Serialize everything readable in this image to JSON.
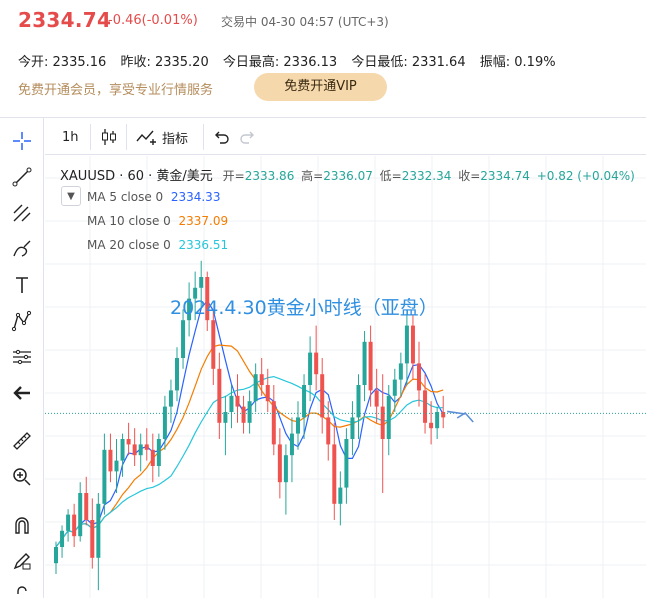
{
  "quote": {
    "price": "2334.74",
    "change": "-0.46(-0.01%)",
    "status": "交易中 04-30 04:57 (UTC+3)"
  },
  "stats": [
    {
      "label": "今开:",
      "value": "2335.16"
    },
    {
      "label": "昨收:",
      "value": "2335.20"
    },
    {
      "label": "今日最高:",
      "value": "2336.13"
    },
    {
      "label": "今日最低:",
      "value": "2331.64"
    },
    {
      "label": "振幅:",
      "value": "0.19%"
    }
  ],
  "promo": {
    "text": "免费开通会员，享受专业行情服务",
    "button": "免费开通VIP"
  },
  "toolbar": {
    "interval": "1h",
    "indicators": "指标"
  },
  "left_tools": [
    "crosshair-icon",
    "trend-line-icon",
    "fib-icon",
    "brush-icon",
    "text-icon",
    "pattern-icon",
    "measure-icon",
    "back-arrow-icon",
    "ruler-icon",
    "zoom-in-icon",
    "magnet-icon",
    "lock-pencil-icon",
    "lock-icon"
  ],
  "legend": {
    "symbol": "XAUUSD · 60 · 黄金/美元",
    "open_label": "开=",
    "open": "2333.86",
    "high_label": "高=",
    "high": "2336.07",
    "low_label": "低=",
    "low": "2332.34",
    "close_label": "收=",
    "close": "2334.74",
    "change": "+0.82 (+0.04%)",
    "ma": [
      {
        "label": "MA 5 close 0",
        "value": "2334.33",
        "color": "#2962ff"
      },
      {
        "label": "MA 10 close 0",
        "value": "2337.09",
        "color": "#f57c00"
      },
      {
        "label": "MA 20 close 0",
        "value": "2336.51",
        "color": "#26c6da"
      }
    ]
  },
  "annotation": "2024.4.30黄金小时线（亚盘）",
  "colors": {
    "up": "#26a69a",
    "down": "#ef5350",
    "price_red": "#e54b4b",
    "annotation_blue": "#2f8fe0"
  },
  "chart_data": {
    "type": "candlestick",
    "ohlc": [
      [
        2307,
        2311,
        2305,
        2310
      ],
      [
        2310,
        2314,
        2308,
        2313
      ],
      [
        2313,
        2317,
        2311,
        2316
      ],
      [
        2316,
        2318,
        2310,
        2312
      ],
      [
        2312,
        2322,
        2311,
        2320
      ],
      [
        2320,
        2323,
        2314,
        2315
      ],
      [
        2315,
        2319,
        2306,
        2308
      ],
      [
        2308,
        2320,
        2302,
        2318
      ],
      [
        2318,
        2331,
        2316,
        2328
      ],
      [
        2328,
        2331,
        2322,
        2324
      ],
      [
        2324,
        2330,
        2320,
        2326
      ],
      [
        2326,
        2331,
        2323,
        2330
      ],
      [
        2330,
        2333,
        2327,
        2329
      ],
      [
        2329,
        2332,
        2325,
        2327
      ],
      [
        2327,
        2331,
        2324,
        2329
      ],
      [
        2329,
        2332,
        2326,
        2328
      ],
      [
        2328,
        2331,
        2322,
        2325
      ],
      [
        2325,
        2331,
        2323,
        2330
      ],
      [
        2330,
        2338,
        2328,
        2336
      ],
      [
        2336,
        2341,
        2333,
        2339
      ],
      [
        2339,
        2347,
        2337,
        2345
      ],
      [
        2345,
        2354,
        2343,
        2352
      ],
      [
        2352,
        2359,
        2349,
        2356
      ],
      [
        2356,
        2361,
        2352,
        2358
      ],
      [
        2358,
        2363,
        2354,
        2360
      ],
      [
        2360,
        2361,
        2350,
        2352
      ],
      [
        2352,
        2354,
        2340,
        2343
      ],
      [
        2343,
        2346,
        2330,
        2333
      ],
      [
        2333,
        2338,
        2327,
        2335
      ],
      [
        2335,
        2340,
        2332,
        2338
      ],
      [
        2338,
        2342,
        2333,
        2336
      ],
      [
        2336,
        2338,
        2331,
        2333
      ],
      [
        2333,
        2339,
        2331,
        2337
      ],
      [
        2337,
        2344,
        2335,
        2342
      ],
      [
        2342,
        2345,
        2338,
        2340
      ],
      [
        2340,
        2343,
        2335,
        2337
      ],
      [
        2337,
        2340,
        2327,
        2329
      ],
      [
        2329,
        2332,
        2319,
        2322
      ],
      [
        2322,
        2329,
        2316,
        2327
      ],
      [
        2327,
        2334,
        2322,
        2331
      ],
      [
        2331,
        2337,
        2328,
        2334
      ],
      [
        2334,
        2342,
        2330,
        2340
      ],
      [
        2340,
        2349,
        2337,
        2346
      ],
      [
        2346,
        2351,
        2339,
        2342
      ],
      [
        2342,
        2345,
        2331,
        2334
      ],
      [
        2334,
        2337,
        2326,
        2329
      ],
      [
        2329,
        2333,
        2315,
        2318
      ],
      [
        2318,
        2324,
        2314,
        2321
      ],
      [
        2321,
        2332,
        2318,
        2330
      ],
      [
        2330,
        2337,
        2327,
        2334
      ],
      [
        2334,
        2342,
        2330,
        2340
      ],
      [
        2340,
        2350,
        2337,
        2348
      ],
      [
        2348,
        2351,
        2336,
        2339
      ],
      [
        2339,
        2343,
        2333,
        2336
      ],
      [
        2336,
        2342,
        2320,
        2330
      ],
      [
        2330,
        2340,
        2327,
        2338
      ],
      [
        2338,
        2343,
        2335,
        2341
      ],
      [
        2341,
        2346,
        2338,
        2344
      ],
      [
        2344,
        2354,
        2340,
        2351
      ],
      [
        2351,
        2353,
        2341,
        2344
      ],
      [
        2344,
        2348,
        2336,
        2339
      ],
      [
        2339,
        2342,
        2331,
        2333
      ],
      [
        2333,
        2337,
        2329,
        2332
      ],
      [
        2332,
        2336,
        2330,
        2335
      ],
      [
        2335,
        2338,
        2332,
        2334
      ]
    ],
    "ma": [
      {
        "name": "MA 5",
        "color": "#2962ff"
      },
      {
        "name": "MA 10",
        "color": "#f57c00"
      },
      {
        "name": "MA 20",
        "color": "#26c6da"
      }
    ],
    "last_price": 2334.74,
    "y_range": [
      2300,
      2375
    ]
  }
}
